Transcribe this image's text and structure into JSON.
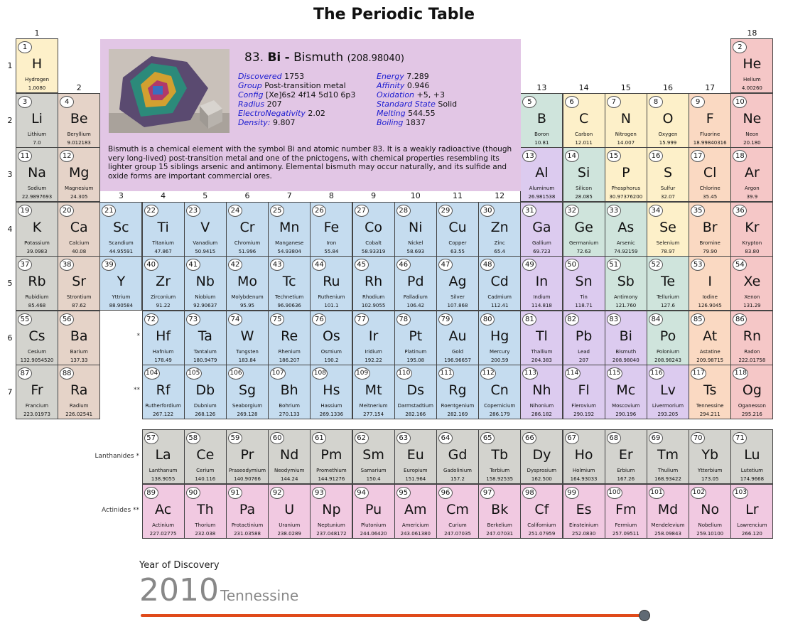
{
  "title": "The Periodic Table",
  "colors": {
    "hydrogen": "#fdf0c9",
    "noble": "#f5c7c7",
    "alkali": "#d3d3ce",
    "alkaline": "#e5d3c8",
    "transition": "#c5dcef",
    "post": "#dccbef",
    "metalloid": "#cfe4dc",
    "nonmetal": "#fdf0c9",
    "halogen": "#fad9c2",
    "lanth": "#d3d3ce",
    "actin": "#f1c9e1",
    "detail": "#e2c6e5",
    "slider_track": "#e04a1a",
    "slider_thumb": "#606a74",
    "link": "#1a1ad0"
  },
  "groups": [
    "1",
    "2",
    "3",
    "4",
    "5",
    "6",
    "7",
    "8",
    "9",
    "10",
    "11",
    "12",
    "13",
    "14",
    "15",
    "16",
    "17",
    "18"
  ],
  "periods": [
    "1",
    "2",
    "3",
    "4",
    "5",
    "6",
    "7"
  ],
  "series_labels": {
    "lanthanides": "Lanthanides *",
    "actinides": "Actinides **",
    "lanth_marker": "*",
    "actin_marker": "**"
  },
  "elements": [
    {
      "n": "1",
      "s": "H",
      "name": "Hydrogen",
      "w": "1.0080",
      "row": 1,
      "col": 1,
      "c": "hydrogen"
    },
    {
      "n": "2",
      "s": "He",
      "name": "Helium",
      "w": "4.00260",
      "row": 1,
      "col": 18,
      "c": "noble"
    },
    {
      "n": "3",
      "s": "Li",
      "name": "Lithium",
      "w": "7.0",
      "row": 2,
      "col": 1,
      "c": "alkali"
    },
    {
      "n": "4",
      "s": "Be",
      "name": "Beryllium",
      "w": "9.012183",
      "row": 2,
      "col": 2,
      "c": "alkaline"
    },
    {
      "n": "5",
      "s": "B",
      "name": "Boron",
      "w": "10.81",
      "row": 2,
      "col": 13,
      "c": "metalloid"
    },
    {
      "n": "6",
      "s": "C",
      "name": "Carbon",
      "w": "12.011",
      "row": 2,
      "col": 14,
      "c": "nonmetal"
    },
    {
      "n": "7",
      "s": "N",
      "name": "Nitrogen",
      "w": "14.007",
      "row": 2,
      "col": 15,
      "c": "nonmetal"
    },
    {
      "n": "8",
      "s": "O",
      "name": "Oxygen",
      "w": "15.999",
      "row": 2,
      "col": 16,
      "c": "nonmetal"
    },
    {
      "n": "9",
      "s": "F",
      "name": "Fluorine",
      "w": "18.99840316",
      "row": 2,
      "col": 17,
      "c": "halogen"
    },
    {
      "n": "10",
      "s": "Ne",
      "name": "Neon",
      "w": "20.180",
      "row": 2,
      "col": 18,
      "c": "noble"
    },
    {
      "n": "11",
      "s": "Na",
      "name": "Sodium",
      "w": "22.9897693",
      "row": 3,
      "col": 1,
      "c": "alkali"
    },
    {
      "n": "12",
      "s": "Mg",
      "name": "Magnesium",
      "w": "24.305",
      "row": 3,
      "col": 2,
      "c": "alkaline"
    },
    {
      "n": "13",
      "s": "Al",
      "name": "Aluminum",
      "w": "26.981538",
      "row": 3,
      "col": 13,
      "c": "post"
    },
    {
      "n": "14",
      "s": "Si",
      "name": "Silicon",
      "w": "28.085",
      "row": 3,
      "col": 14,
      "c": "metalloid"
    },
    {
      "n": "15",
      "s": "P",
      "name": "Phosphorus",
      "w": "30.97376200",
      "row": 3,
      "col": 15,
      "c": "nonmetal"
    },
    {
      "n": "16",
      "s": "S",
      "name": "Sulfur",
      "w": "32.07",
      "row": 3,
      "col": 16,
      "c": "nonmetal"
    },
    {
      "n": "17",
      "s": "Cl",
      "name": "Chlorine",
      "w": "35.45",
      "row": 3,
      "col": 17,
      "c": "halogen"
    },
    {
      "n": "18",
      "s": "Ar",
      "name": "Argon",
      "w": "39.9",
      "row": 3,
      "col": 18,
      "c": "noble"
    },
    {
      "n": "19",
      "s": "K",
      "name": "Potassium",
      "w": "39.0983",
      "row": 4,
      "col": 1,
      "c": "alkali"
    },
    {
      "n": "20",
      "s": "Ca",
      "name": "Calcium",
      "w": "40.08",
      "row": 4,
      "col": 2,
      "c": "alkaline"
    },
    {
      "n": "21",
      "s": "Sc",
      "name": "Scandium",
      "w": "44.95591",
      "row": 4,
      "col": 3,
      "c": "transition"
    },
    {
      "n": "22",
      "s": "Ti",
      "name": "Titanium",
      "w": "47.867",
      "row": 4,
      "col": 4,
      "c": "transition"
    },
    {
      "n": "23",
      "s": "V",
      "name": "Vanadium",
      "w": "50.9415",
      "row": 4,
      "col": 5,
      "c": "transition"
    },
    {
      "n": "24",
      "s": "Cr",
      "name": "Chromium",
      "w": "51.996",
      "row": 4,
      "col": 6,
      "c": "transition"
    },
    {
      "n": "25",
      "s": "Mn",
      "name": "Manganese",
      "w": "54.93804",
      "row": 4,
      "col": 7,
      "c": "transition"
    },
    {
      "n": "26",
      "s": "Fe",
      "name": "Iron",
      "w": "55.84",
      "row": 4,
      "col": 8,
      "c": "transition"
    },
    {
      "n": "27",
      "s": "Co",
      "name": "Cobalt",
      "w": "58.93319",
      "row": 4,
      "col": 9,
      "c": "transition"
    },
    {
      "n": "28",
      "s": "Ni",
      "name": "Nickel",
      "w": "58.693",
      "row": 4,
      "col": 10,
      "c": "transition"
    },
    {
      "n": "29",
      "s": "Cu",
      "name": "Copper",
      "w": "63.55",
      "row": 4,
      "col": 11,
      "c": "transition"
    },
    {
      "n": "30",
      "s": "Zn",
      "name": "Zinc",
      "w": "65.4",
      "row": 4,
      "col": 12,
      "c": "transition"
    },
    {
      "n": "31",
      "s": "Ga",
      "name": "Gallium",
      "w": "69.723",
      "row": 4,
      "col": 13,
      "c": "post"
    },
    {
      "n": "32",
      "s": "Ge",
      "name": "Germanium",
      "w": "72.63",
      "row": 4,
      "col": 14,
      "c": "metalloid"
    },
    {
      "n": "33",
      "s": "As",
      "name": "Arsenic",
      "w": "74.92159",
      "row": 4,
      "col": 15,
      "c": "metalloid"
    },
    {
      "n": "34",
      "s": "Se",
      "name": "Selenium",
      "w": "78.97",
      "row": 4,
      "col": 16,
      "c": "nonmetal"
    },
    {
      "n": "35",
      "s": "Br",
      "name": "Bromine",
      "w": "79.90",
      "row": 4,
      "col": 17,
      "c": "halogen"
    },
    {
      "n": "36",
      "s": "Kr",
      "name": "Krypton",
      "w": "83.80",
      "row": 4,
      "col": 18,
      "c": "noble"
    },
    {
      "n": "37",
      "s": "Rb",
      "name": "Rubidium",
      "w": "85.468",
      "row": 5,
      "col": 1,
      "c": "alkali"
    },
    {
      "n": "38",
      "s": "Sr",
      "name": "Strontium",
      "w": "87.62",
      "row": 5,
      "col": 2,
      "c": "alkaline"
    },
    {
      "n": "39",
      "s": "Y",
      "name": "Yttrium",
      "w": "88.90584",
      "row": 5,
      "col": 3,
      "c": "transition"
    },
    {
      "n": "40",
      "s": "Zr",
      "name": "Zirconium",
      "w": "91.22",
      "row": 5,
      "col": 4,
      "c": "transition"
    },
    {
      "n": "41",
      "s": "Nb",
      "name": "Niobium",
      "w": "92.90637",
      "row": 5,
      "col": 5,
      "c": "transition"
    },
    {
      "n": "42",
      "s": "Mo",
      "name": "Molybdenum",
      "w": "95.95",
      "row": 5,
      "col": 6,
      "c": "transition"
    },
    {
      "n": "43",
      "s": "Tc",
      "name": "Technetium",
      "w": "96.90636",
      "row": 5,
      "col": 7,
      "c": "transition"
    },
    {
      "n": "44",
      "s": "Ru",
      "name": "Ruthenium",
      "w": "101.1",
      "row": 5,
      "col": 8,
      "c": "transition"
    },
    {
      "n": "45",
      "s": "Rh",
      "name": "Rhodium",
      "w": "102.9055",
      "row": 5,
      "col": 9,
      "c": "transition"
    },
    {
      "n": "46",
      "s": "Pd",
      "name": "Palladium",
      "w": "106.42",
      "row": 5,
      "col": 10,
      "c": "transition"
    },
    {
      "n": "47",
      "s": "Ag",
      "name": "Silver",
      "w": "107.868",
      "row": 5,
      "col": 11,
      "c": "transition"
    },
    {
      "n": "48",
      "s": "Cd",
      "name": "Cadmium",
      "w": "112.41",
      "row": 5,
      "col": 12,
      "c": "transition"
    },
    {
      "n": "49",
      "s": "In",
      "name": "Indium",
      "w": "114.818",
      "row": 5,
      "col": 13,
      "c": "post"
    },
    {
      "n": "50",
      "s": "Sn",
      "name": "Tin",
      "w": "118.71",
      "row": 5,
      "col": 14,
      "c": "post"
    },
    {
      "n": "51",
      "s": "Sb",
      "name": "Antimony",
      "w": "121.760",
      "row": 5,
      "col": 15,
      "c": "metalloid"
    },
    {
      "n": "52",
      "s": "Te",
      "name": "Tellurium",
      "w": "127.6",
      "row": 5,
      "col": 16,
      "c": "metalloid"
    },
    {
      "n": "53",
      "s": "I",
      "name": "Iodine",
      "w": "126.9045",
      "row": 5,
      "col": 17,
      "c": "halogen"
    },
    {
      "n": "54",
      "s": "Xe",
      "name": "Xenon",
      "w": "131.29",
      "row": 5,
      "col": 18,
      "c": "noble"
    },
    {
      "n": "55",
      "s": "Cs",
      "name": "Cesium",
      "w": "132.9054520",
      "row": 6,
      "col": 1,
      "c": "alkali"
    },
    {
      "n": "56",
      "s": "Ba",
      "name": "Barium",
      "w": "137.33",
      "row": 6,
      "col": 2,
      "c": "alkaline"
    },
    {
      "n": "72",
      "s": "Hf",
      "name": "Hafnium",
      "w": "178.49",
      "row": 6,
      "col": 4,
      "c": "transition"
    },
    {
      "n": "73",
      "s": "Ta",
      "name": "Tantalum",
      "w": "180.9479",
      "row": 6,
      "col": 5,
      "c": "transition"
    },
    {
      "n": "74",
      "s": "W",
      "name": "Tungsten",
      "w": "183.84",
      "row": 6,
      "col": 6,
      "c": "transition"
    },
    {
      "n": "75",
      "s": "Re",
      "name": "Rhenium",
      "w": "186.207",
      "row": 6,
      "col": 7,
      "c": "transition"
    },
    {
      "n": "76",
      "s": "Os",
      "name": "Osmium",
      "w": "190.2",
      "row": 6,
      "col": 8,
      "c": "transition"
    },
    {
      "n": "77",
      "s": "Ir",
      "name": "Iridium",
      "w": "192.22",
      "row": 6,
      "col": 9,
      "c": "transition"
    },
    {
      "n": "78",
      "s": "Pt",
      "name": "Platinum",
      "w": "195.08",
      "row": 6,
      "col": 10,
      "c": "transition"
    },
    {
      "n": "79",
      "s": "Au",
      "name": "Gold",
      "w": "196.96657",
      "row": 6,
      "col": 11,
      "c": "transition"
    },
    {
      "n": "80",
      "s": "Hg",
      "name": "Mercury",
      "w": "200.59",
      "row": 6,
      "col": 12,
      "c": "transition"
    },
    {
      "n": "81",
      "s": "Tl",
      "name": "Thallium",
      "w": "204.383",
      "row": 6,
      "col": 13,
      "c": "post"
    },
    {
      "n": "82",
      "s": "Pb",
      "name": "Lead",
      "w": "207",
      "row": 6,
      "col": 14,
      "c": "post"
    },
    {
      "n": "83",
      "s": "Bi",
      "name": "Bismuth",
      "w": "208.98040",
      "row": 6,
      "col": 15,
      "c": "post"
    },
    {
      "n": "84",
      "s": "Po",
      "name": "Polonium",
      "w": "208.98243",
      "row": 6,
      "col": 16,
      "c": "metalloid"
    },
    {
      "n": "85",
      "s": "At",
      "name": "Astatine",
      "w": "209.98715",
      "row": 6,
      "col": 17,
      "c": "halogen"
    },
    {
      "n": "86",
      "s": "Rn",
      "name": "Radon",
      "w": "222.01758",
      "row": 6,
      "col": 18,
      "c": "noble"
    },
    {
      "n": "87",
      "s": "Fr",
      "name": "Francium",
      "w": "223.01973",
      "row": 7,
      "col": 1,
      "c": "alkali"
    },
    {
      "n": "88",
      "s": "Ra",
      "name": "Radium",
      "w": "226.02541",
      "row": 7,
      "col": 2,
      "c": "alkaline"
    },
    {
      "n": "104",
      "s": "Rf",
      "name": "Rutherfordium",
      "w": "267.122",
      "row": 7,
      "col": 4,
      "c": "transition"
    },
    {
      "n": "105",
      "s": "Db",
      "name": "Dubnium",
      "w": "268.126",
      "row": 7,
      "col": 5,
      "c": "transition"
    },
    {
      "n": "106",
      "s": "Sg",
      "name": "Seaborgium",
      "w": "269.128",
      "row": 7,
      "col": 6,
      "c": "transition"
    },
    {
      "n": "107",
      "s": "Bh",
      "name": "Bohrium",
      "w": "270.133",
      "row": 7,
      "col": 7,
      "c": "transition"
    },
    {
      "n": "108",
      "s": "Hs",
      "name": "Hassium",
      "w": "269.1336",
      "row": 7,
      "col": 8,
      "c": "transition"
    },
    {
      "n": "109",
      "s": "Mt",
      "name": "Meitnerium",
      "w": "277.154",
      "row": 7,
      "col": 9,
      "c": "transition"
    },
    {
      "n": "110",
      "s": "Ds",
      "name": "Darmstadtium",
      "w": "282.166",
      "row": 7,
      "col": 10,
      "c": "transition"
    },
    {
      "n": "111",
      "s": "Rg",
      "name": "Roentgenium",
      "w": "282.169",
      "row": 7,
      "col": 11,
      "c": "transition"
    },
    {
      "n": "112",
      "s": "Cn",
      "name": "Copernicium",
      "w": "286.179",
      "row": 7,
      "col": 12,
      "c": "transition"
    },
    {
      "n": "113",
      "s": "Nh",
      "name": "Nihonium",
      "w": "286.182",
      "row": 7,
      "col": 13,
      "c": "post"
    },
    {
      "n": "114",
      "s": "Fl",
      "name": "Flerovium",
      "w": "290.192",
      "row": 7,
      "col": 14,
      "c": "post"
    },
    {
      "n": "115",
      "s": "Mc",
      "name": "Moscovium",
      "w": "290.196",
      "row": 7,
      "col": 15,
      "c": "post"
    },
    {
      "n": "116",
      "s": "Lv",
      "name": "Livermorium",
      "w": "293.205",
      "row": 7,
      "col": 16,
      "c": "post"
    },
    {
      "n": "117",
      "s": "Ts",
      "name": "Tennessine",
      "w": "294.211",
      "row": 7,
      "col": 17,
      "c": "halogen"
    },
    {
      "n": "118",
      "s": "Og",
      "name": "Oganesson",
      "w": "295.216",
      "row": 7,
      "col": 18,
      "c": "noble"
    },
    {
      "n": "57",
      "s": "La",
      "name": "Lanthanum",
      "w": "138.9055",
      "row": 9,
      "col": 4,
      "c": "lanth"
    },
    {
      "n": "58",
      "s": "Ce",
      "name": "Cerium",
      "w": "140.116",
      "row": 9,
      "col": 5,
      "c": "lanth"
    },
    {
      "n": "59",
      "s": "Pr",
      "name": "Praseodymium",
      "w": "140.90766",
      "row": 9,
      "col": 6,
      "c": "lanth"
    },
    {
      "n": "60",
      "s": "Nd",
      "name": "Neodymium",
      "w": "144.24",
      "row": 9,
      "col": 7,
      "c": "lanth"
    },
    {
      "n": "61",
      "s": "Pm",
      "name": "Promethium",
      "w": "144.91276",
      "row": 9,
      "col": 8,
      "c": "lanth"
    },
    {
      "n": "62",
      "s": "Sm",
      "name": "Samarium",
      "w": "150.4",
      "row": 9,
      "col": 9,
      "c": "lanth"
    },
    {
      "n": "63",
      "s": "Eu",
      "name": "Europium",
      "w": "151.964",
      "row": 9,
      "col": 10,
      "c": "lanth"
    },
    {
      "n": "64",
      "s": "Gd",
      "name": "Gadolinium",
      "w": "157.2",
      "row": 9,
      "col": 11,
      "c": "lanth"
    },
    {
      "n": "65",
      "s": "Tb",
      "name": "Terbium",
      "w": "158.92535",
      "row": 9,
      "col": 12,
      "c": "lanth"
    },
    {
      "n": "66",
      "s": "Dy",
      "name": "Dysprosium",
      "w": "162.500",
      "row": 9,
      "col": 13,
      "c": "lanth"
    },
    {
      "n": "67",
      "s": "Ho",
      "name": "Holmium",
      "w": "164.93033",
      "row": 9,
      "col": 14,
      "c": "lanth"
    },
    {
      "n": "68",
      "s": "Er",
      "name": "Erbium",
      "w": "167.26",
      "row": 9,
      "col": 15,
      "c": "lanth"
    },
    {
      "n": "69",
      "s": "Tm",
      "name": "Thulium",
      "w": "168.93422",
      "row": 9,
      "col": 16,
      "c": "lanth"
    },
    {
      "n": "70",
      "s": "Yb",
      "name": "Ytterbium",
      "w": "173.05",
      "row": 9,
      "col": 17,
      "c": "lanth"
    },
    {
      "n": "71",
      "s": "Lu",
      "name": "Lutetium",
      "w": "174.9668",
      "row": 9,
      "col": 18,
      "c": "lanth"
    },
    {
      "n": "89",
      "s": "Ac",
      "name": "Actinium",
      "w": "227.02775",
      "row": 10,
      "col": 4,
      "c": "actin"
    },
    {
      "n": "90",
      "s": "Th",
      "name": "Thorium",
      "w": "232.038",
      "row": 10,
      "col": 5,
      "c": "actin"
    },
    {
      "n": "91",
      "s": "Pa",
      "name": "Protactinium",
      "w": "231.03588",
      "row": 10,
      "col": 6,
      "c": "actin"
    },
    {
      "n": "92",
      "s": "U",
      "name": "Uranium",
      "w": "238.0289",
      "row": 10,
      "col": 7,
      "c": "actin"
    },
    {
      "n": "93",
      "s": "Np",
      "name": "Neptunium",
      "w": "237.048172",
      "row": 10,
      "col": 8,
      "c": "actin"
    },
    {
      "n": "94",
      "s": "Pu",
      "name": "Plutonium",
      "w": "244.06420",
      "row": 10,
      "col": 9,
      "c": "actin"
    },
    {
      "n": "95",
      "s": "Am",
      "name": "Americium",
      "w": "243.061380",
      "row": 10,
      "col": 10,
      "c": "actin"
    },
    {
      "n": "96",
      "s": "Cm",
      "name": "Curium",
      "w": "247.07035",
      "row": 10,
      "col": 11,
      "c": "actin"
    },
    {
      "n": "97",
      "s": "Bk",
      "name": "Berkelium",
      "w": "247.07031",
      "row": 10,
      "col": 12,
      "c": "actin"
    },
    {
      "n": "98",
      "s": "Cf",
      "name": "Californium",
      "w": "251.07959",
      "row": 10,
      "col": 13,
      "c": "actin"
    },
    {
      "n": "99",
      "s": "Es",
      "name": "Einsteinium",
      "w": "252.0830",
      "row": 10,
      "col": 14,
      "c": "actin"
    },
    {
      "n": "100",
      "s": "Fm",
      "name": "Fermium",
      "w": "257.09511",
      "row": 10,
      "col": 15,
      "c": "actin"
    },
    {
      "n": "101",
      "s": "Md",
      "name": "Mendelevium",
      "w": "258.09843",
      "row": 10,
      "col": 16,
      "c": "actin"
    },
    {
      "n": "102",
      "s": "No",
      "name": "Nobelium",
      "w": "259.10100",
      "row": 10,
      "col": 17,
      "c": "actin"
    },
    {
      "n": "103",
      "s": "Lr",
      "name": "Lawrencium",
      "w": "266.120",
      "row": 10,
      "col": 18,
      "c": "actin"
    }
  ],
  "detail": {
    "number": "83.",
    "symbol": "Bi",
    "dash": "-",
    "name": "Bismuth",
    "weight": "(208.98040)",
    "left_props": [
      {
        "k": "Discovered",
        "v": "1753"
      },
      {
        "k": "Group",
        "v": "Post-transition metal"
      },
      {
        "k": "Config",
        "v": "[Xe]6s2 4f14 5d10 6p3"
      },
      {
        "k": "Radius",
        "v": "207"
      },
      {
        "k": "ElectroNegativity",
        "v": "2.02"
      },
      {
        "k": "Density:",
        "v": "9.807"
      }
    ],
    "right_props": [
      {
        "k": "Energy",
        "v": "7.289"
      },
      {
        "k": "Affinity",
        "v": "0.946"
      },
      {
        "k": "Oxidation",
        "v": "+5, +3"
      },
      {
        "k": "Standard State",
        "v": "Solid"
      },
      {
        "k": "Melting",
        "v": "544.55"
      },
      {
        "k": "Boiling",
        "v": "1837"
      }
    ],
    "summary": "Bismuth is a chemical element with the symbol Bi and atomic number 83. It is a weakly radioactive (though very long-lived) post-transition metal and one of the pnictogens, with chemical properties resembling its lighter group 15 siblings arsenic and antimony. Elemental bismuth may occur naturally, and its sulfide and oxide forms are important commercial ores."
  },
  "slider": {
    "label": "Year of Discovery",
    "year": "2010",
    "element": "Tennessine",
    "min_year": 1669,
    "max_year": 2010,
    "value": 2010
  }
}
